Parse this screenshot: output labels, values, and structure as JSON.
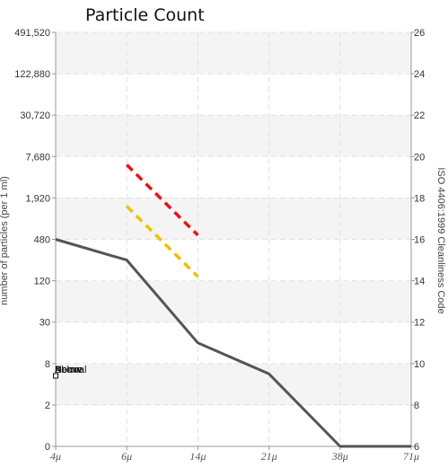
{
  "chart_data": {
    "type": "line",
    "title": "Particle Count",
    "xlabel": "",
    "ylabel": "number of particles (per 1 ml)",
    "y2label": "ISO 4406:1999 Cleanliness Code",
    "x_categories": [
      "4μ",
      "6μ",
      "14μ",
      "21μ",
      "38μ",
      "71μ"
    ],
    "y_ticks": [
      "0",
      "2",
      "8",
      "30",
      "120",
      "480",
      "1,920",
      "7,680",
      "30,720",
      "122,880",
      "491,520"
    ],
    "y2_ticks": [
      "6",
      "8",
      "10",
      "12",
      "14",
      "16",
      "18",
      "20",
      "22",
      "24",
      "26"
    ],
    "grid": true,
    "series": [
      {
        "name": "",
        "color": "#555555",
        "style": "solid",
        "points": [
          {
            "x": "4μ",
            "code": 16.0
          },
          {
            "x": "6μ",
            "code": 15.0
          },
          {
            "x": "14μ",
            "code": 11.0
          },
          {
            "x": "21μ",
            "code": 9.5
          },
          {
            "x": "38μ",
            "code": 6.0
          },
          {
            "x": "71μ",
            "code": 6.0
          }
        ]
      },
      {
        "name": "",
        "color": "#ee1111",
        "style": "dashed",
        "points": [
          {
            "x": "6μ",
            "code": 19.6
          },
          {
            "x": "14μ",
            "code": 16.2
          }
        ]
      },
      {
        "name": "",
        "color": "#f0c000",
        "style": "dashed",
        "points": [
          {
            "x": "6μ",
            "code": 17.6
          },
          {
            "x": "14μ",
            "code": 14.2
          }
        ]
      }
    ],
    "legend_labels": [
      "Above",
      "Normal",
      "Below"
    ]
  }
}
